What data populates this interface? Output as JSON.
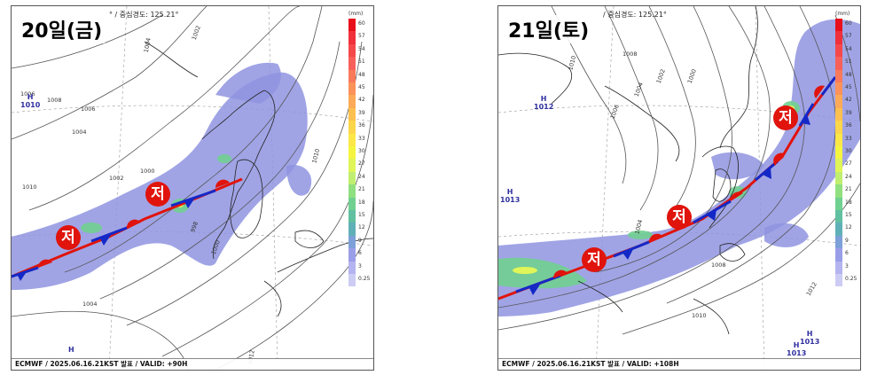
{
  "colors": {
    "rain": "#8f94e0",
    "front_warm": "#e0140c",
    "front_cold": "#1428c8",
    "low": "#e0140c",
    "high": "#3030a0",
    "isobar": "#555555"
  },
  "colorbar": {
    "unit": "(mm)",
    "ticks": [
      "60",
      "57",
      "54",
      "51",
      "48",
      "45",
      "42",
      "39",
      "36",
      "33",
      "30",
      "27",
      "24",
      "21",
      "18",
      "15",
      "12",
      "9",
      "6",
      "3",
      "0.25"
    ],
    "colors": [
      "#e8101a",
      "#f0303a",
      "#f5484a",
      "#f7605a",
      "#f97a5a",
      "#fa925a",
      "#fbaa58",
      "#fcc050",
      "#fcd64a",
      "#fbe848",
      "#f5f540",
      "#e0f558",
      "#c0ee70",
      "#90e080",
      "#70d090",
      "#60c0a0",
      "#60b0b8",
      "#7ea0d8",
      "#9a9ee8",
      "#b4b4f0",
      "#ccccf4"
    ]
  },
  "panels": [
    {
      "title": "20일(금)",
      "meridian": "° / 중심경도: 125.21°",
      "footer": "ECMWF / 2025.06.16.21KST 발표 / VALID: +90H",
      "low_symbol": "저",
      "isobar_labels": [
        "1004",
        "1002",
        "1006",
        "1008",
        "1010",
        "1006",
        "1004",
        "1002",
        "1000",
        "998",
        "1000",
        "1004",
        "1010",
        "1012"
      ],
      "highs": [
        {
          "h": "H",
          "v": "1010"
        },
        {
          "h": "H",
          "v": ""
        }
      ]
    },
    {
      "title": "21일(토)",
      "meridian": "/ 중심경도: 125.21°",
      "footer": "ECMWF / 2025.06.16.21KST 발표 / VALID: +108H",
      "low_symbol": "저",
      "isobar_labels": [
        "1010",
        "1008",
        "1006",
        "1004",
        "1002",
        "1000",
        "1004",
        "1008",
        "1010",
        "1012"
      ],
      "highs": [
        {
          "h": "H",
          "v": "1012"
        },
        {
          "h": "H",
          "v": "1013"
        },
        {
          "h": "H",
          "v": "1013"
        },
        {
          "h": "H",
          "v": "1013"
        }
      ]
    }
  ]
}
